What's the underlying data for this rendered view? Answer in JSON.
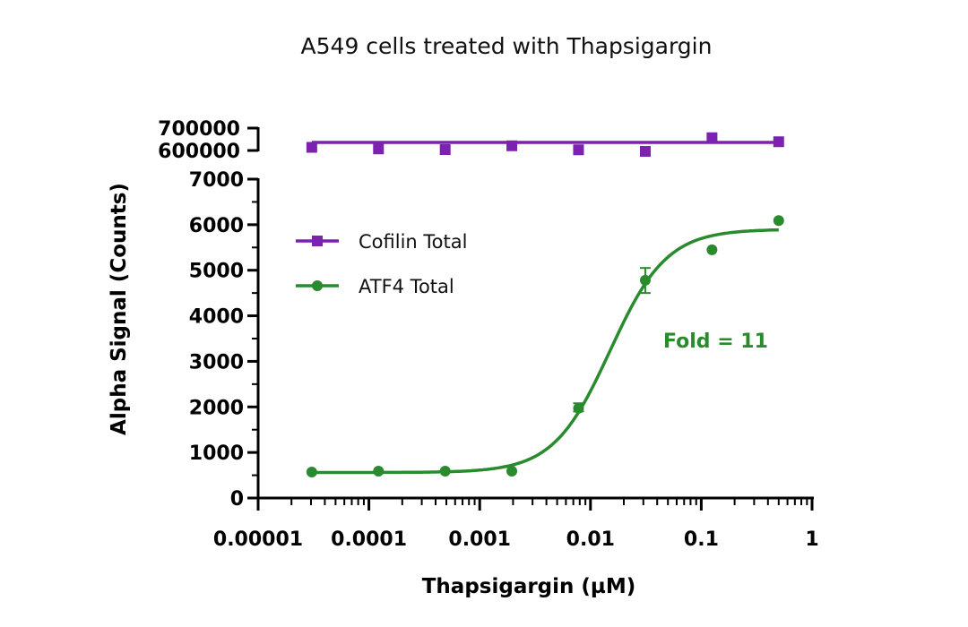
{
  "chart_data": {
    "type": "scatter",
    "title": "A549 cells treated with Thapsigargin",
    "xlabel": "Thapsigargin (µM)",
    "ylabel": "Alpha Signal (Counts)",
    "xscale": "log",
    "xlim": [
      1e-05,
      1
    ],
    "x_tick_labels": [
      "0.00001",
      "0.0001",
      "0.001",
      "0.01",
      "0.1",
      "1"
    ],
    "y_axis_segments": [
      {
        "range": [
          0,
          7000
        ],
        "tick_labels": [
          "0",
          "1000",
          "2000",
          "3000",
          "4000",
          "5000",
          "6000",
          "7000"
        ]
      },
      {
        "range": [
          600000,
          700000
        ],
        "tick_labels": [
          "600000",
          "700000"
        ]
      }
    ],
    "grid": false,
    "legend_position": "upper-left",
    "x": [
      3.05e-05,
      0.000122,
      0.000488,
      0.00195,
      0.0078,
      0.03125,
      0.125,
      0.5
    ],
    "series": [
      {
        "name": "Cofilin Total",
        "marker": "square",
        "color": "#7b22b0",
        "values": [
          614000,
          607000,
          604000,
          621000,
          603000,
          596000,
          657000,
          639000
        ],
        "fit": "horizontal line",
        "fit_value": 636000
      },
      {
        "name": "ATF4 Total",
        "marker": "circle",
        "color": "#2a8a2e",
        "values": [
          570,
          590,
          590,
          590,
          1970,
          4780,
          5450,
          6090
        ],
        "error_low": [
          null,
          null,
          null,
          null,
          1900,
          4500,
          null,
          null
        ],
        "error_high": [
          null,
          null,
          null,
          null,
          2080,
          5050,
          null,
          null
        ],
        "fit": "4PL sigmoid",
        "fit_params": {
          "bottom": 560,
          "top": 5900,
          "ec50": 0.015,
          "hill": 1.7
        }
      }
    ],
    "annotations": [
      {
        "text": "Fold = 11",
        "color": "#2a8a2e"
      }
    ]
  }
}
